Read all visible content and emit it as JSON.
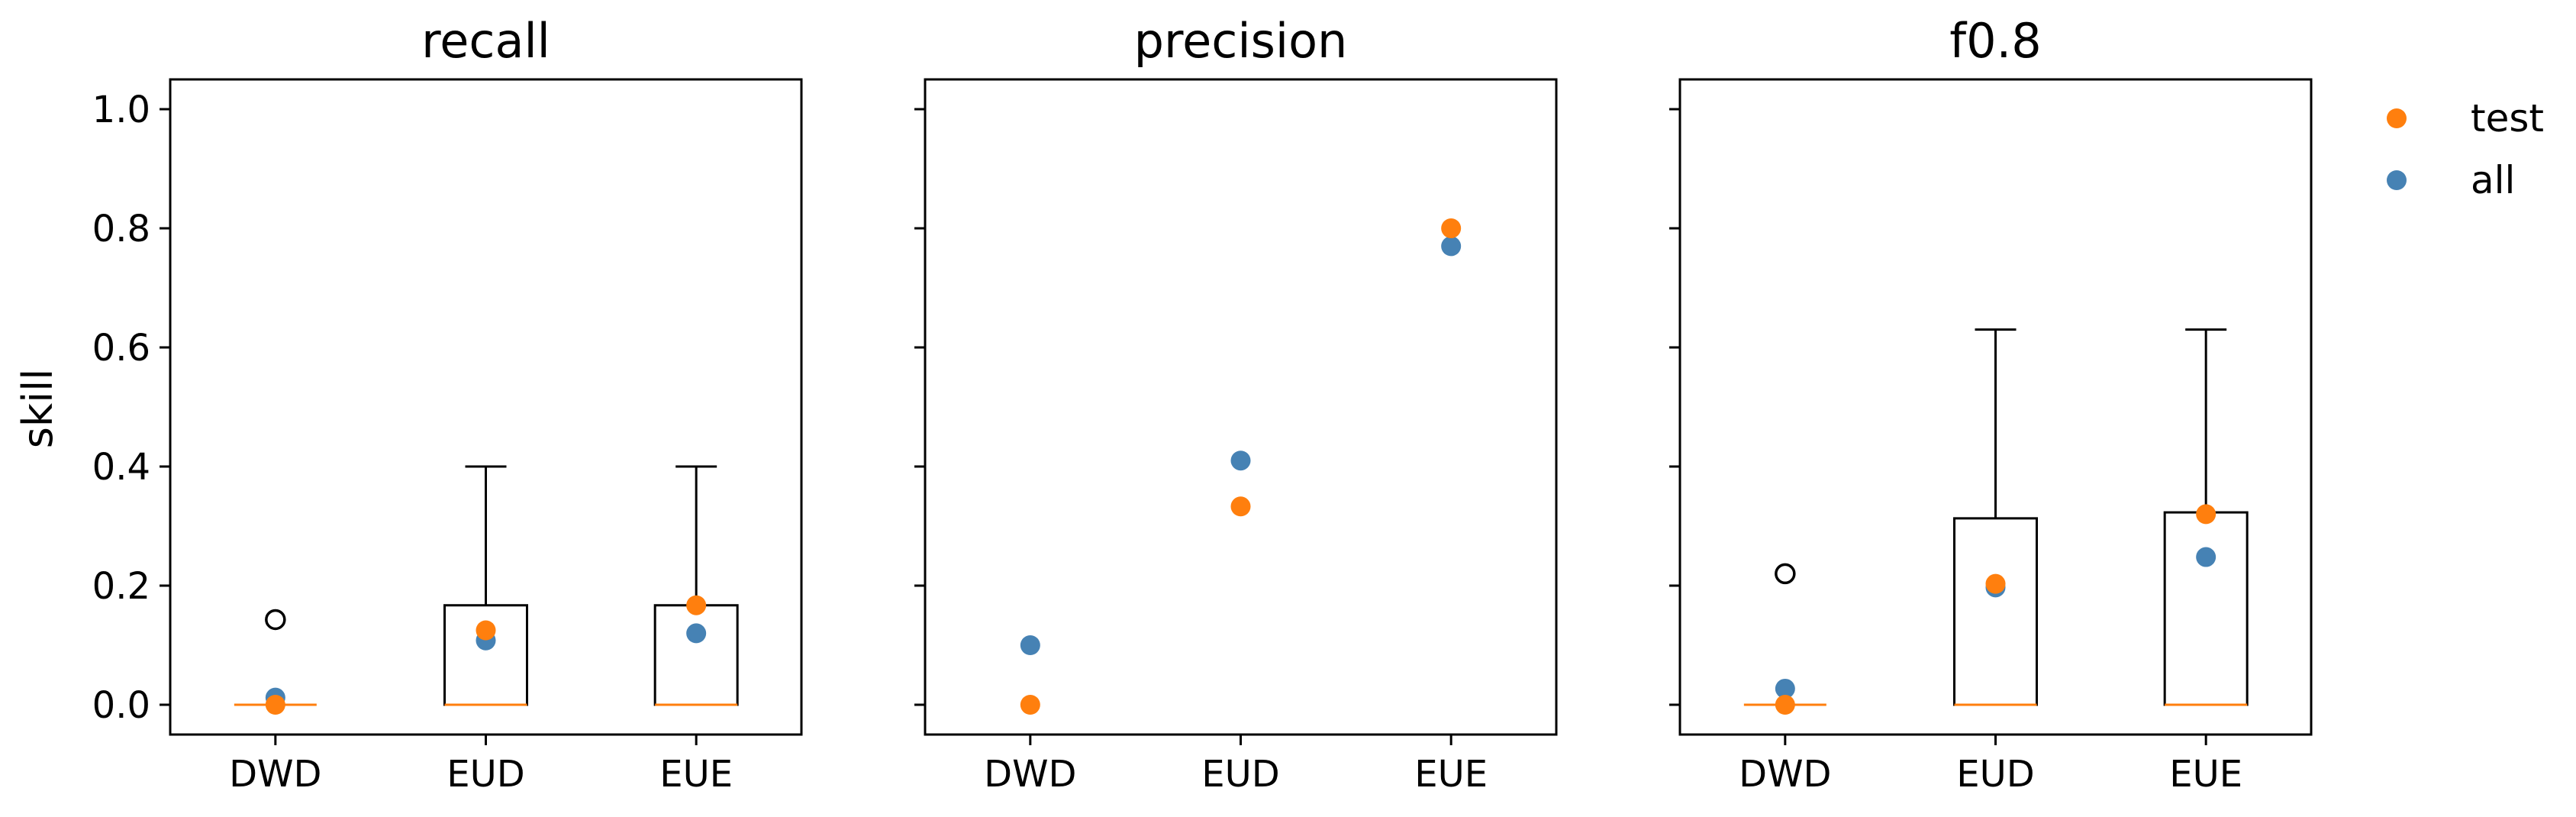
{
  "chart_data": [
    {
      "type": "box",
      "title": "recall",
      "ylabel": "skill",
      "xlabel": "",
      "categories": [
        "DWD",
        "EUD",
        "EUE"
      ],
      "ylim": [
        -0.05,
        1.05
      ],
      "yticks": [
        "0.0",
        "0.2",
        "0.4",
        "0.6",
        "0.8",
        "1.0"
      ],
      "boxes": [
        {
          "category": "DWD",
          "q1": 0.0,
          "median": 0.0,
          "q3": 0.0,
          "whisker_low": 0.0,
          "whisker_high": 0.0,
          "outliers": [
            0.143
          ]
        },
        {
          "category": "EUD",
          "q1": 0.0,
          "median": 0.0,
          "q3": 0.167,
          "whisker_low": 0.0,
          "whisker_high": 0.4,
          "outliers": []
        },
        {
          "category": "EUE",
          "q1": 0.0,
          "median": 0.0,
          "q3": 0.167,
          "whisker_low": 0.0,
          "whisker_high": 0.4,
          "outliers": []
        }
      ],
      "series": [
        {
          "name": "all",
          "color": "#4682b4",
          "values": [
            0.012,
            0.108,
            0.12
          ]
        },
        {
          "name": "test",
          "color": "#ff7f0e",
          "values": [
            0.0,
            0.125,
            0.167
          ]
        }
      ]
    },
    {
      "type": "scatter",
      "title": "precision",
      "categories": [
        "DWD",
        "EUD",
        "EUE"
      ],
      "ylim": [
        -0.05,
        1.05
      ],
      "boxes": [],
      "series": [
        {
          "name": "all",
          "color": "#4682b4",
          "values": [
            0.1,
            0.41,
            0.77
          ]
        },
        {
          "name": "test",
          "color": "#ff7f0e",
          "values": [
            0.0,
            0.333,
            0.8
          ]
        }
      ]
    },
    {
      "type": "box",
      "title": "f0.8",
      "categories": [
        "DWD",
        "EUD",
        "EUE"
      ],
      "ylim": [
        -0.05,
        1.05
      ],
      "boxes": [
        {
          "category": "DWD",
          "q1": 0.0,
          "median": 0.0,
          "q3": 0.0,
          "whisker_low": 0.0,
          "whisker_high": 0.0,
          "outliers": [
            0.22
          ]
        },
        {
          "category": "EUD",
          "q1": 0.0,
          "median": 0.0,
          "q3": 0.313,
          "whisker_low": 0.0,
          "whisker_high": 0.63,
          "outliers": []
        },
        {
          "category": "EUE",
          "q1": 0.0,
          "median": 0.0,
          "q3": 0.323,
          "whisker_low": 0.0,
          "whisker_high": 0.63,
          "outliers": []
        }
      ],
      "series": [
        {
          "name": "all",
          "color": "#4682b4",
          "values": [
            0.027,
            0.197,
            0.248
          ]
        },
        {
          "name": "test",
          "color": "#ff7f0e",
          "values": [
            0.0,
            0.203,
            0.32
          ]
        }
      ]
    }
  ],
  "legend": {
    "position": "right",
    "entries": [
      {
        "label": "test",
        "color": "#ff7f0e"
      },
      {
        "label": "all",
        "color": "#4682b4"
      }
    ]
  },
  "colors": {
    "median_line": "#ff7f0e",
    "box_stroke": "#000000",
    "outlier_stroke": "#000000"
  }
}
